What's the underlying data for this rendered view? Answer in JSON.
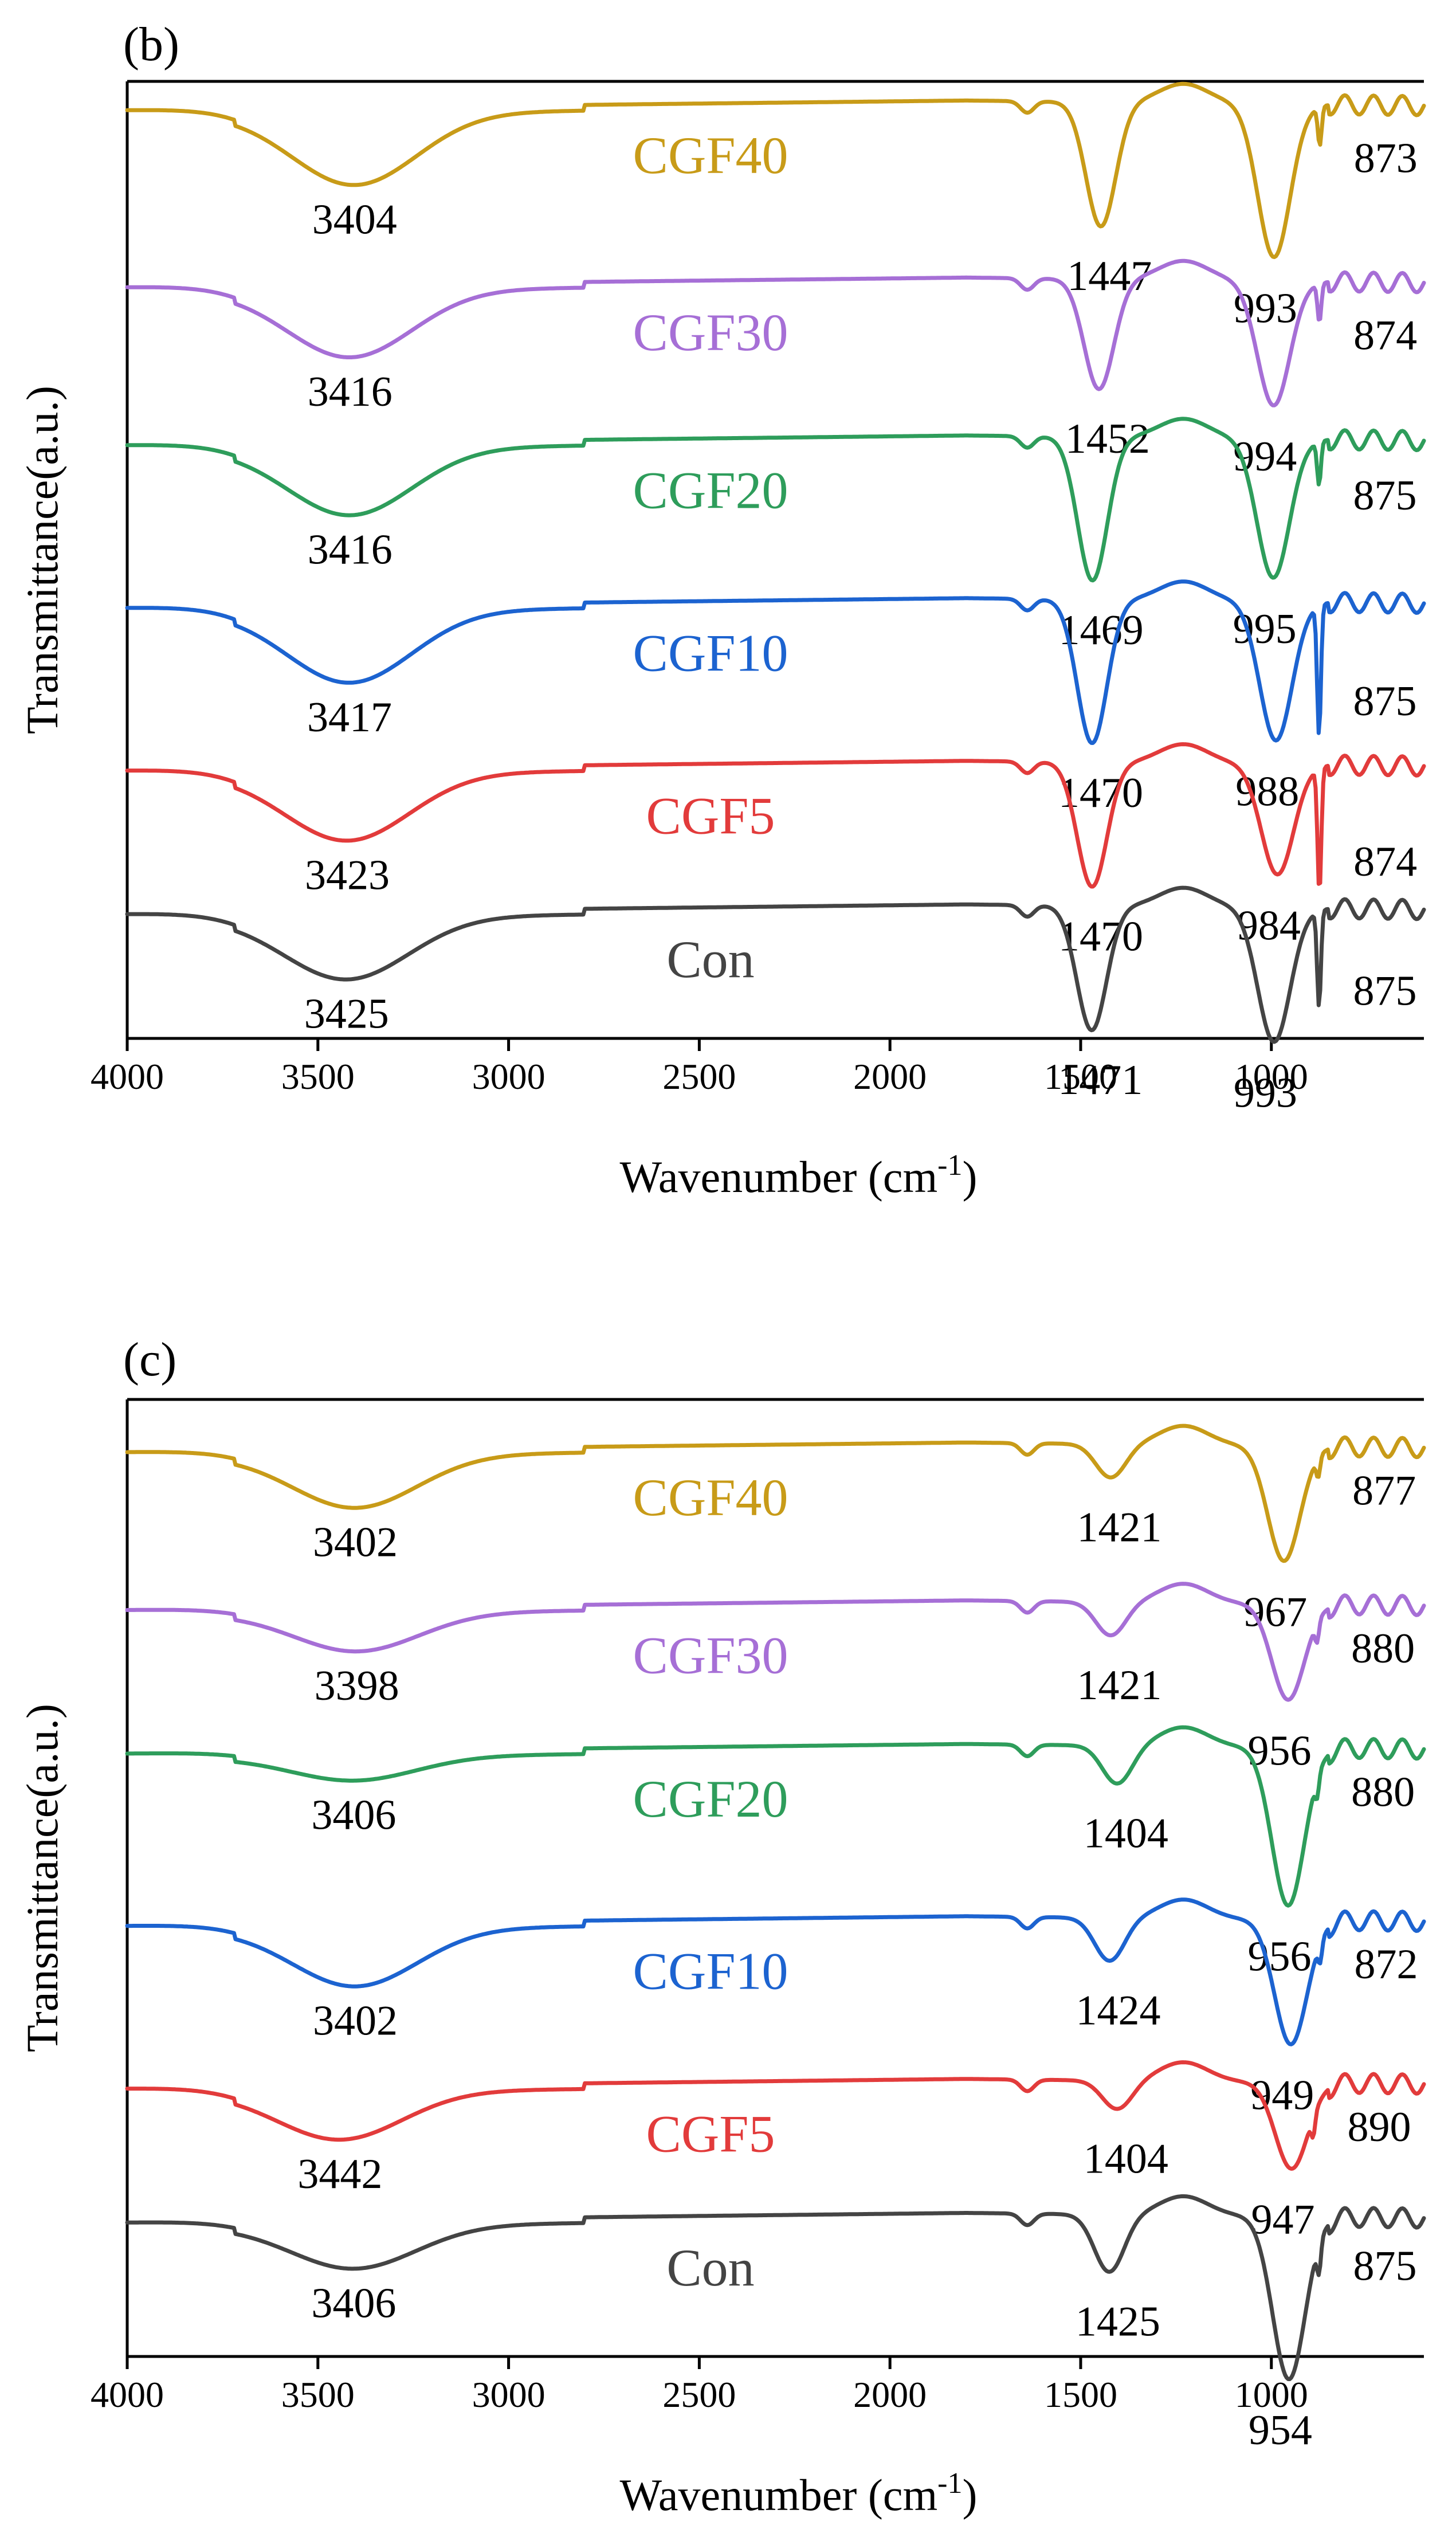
{
  "chart_data": [
    {
      "type": "line",
      "panel_label": "(b)",
      "xlabel": "Wavenumber (cm",
      "xlabel_sup": "-1",
      "xlabel_end": ")",
      "ylabel": "Transmittance(a.u.)",
      "xlim": [
        4000,
        600
      ],
      "xlim_note": "axis reversed: 4000 at left, about 600 at right",
      "xticks": [
        "4000",
        "3500",
        "3000",
        "2500",
        "2000",
        "1500",
        "1000"
      ],
      "xtick_values": [
        4000,
        3500,
        3000,
        2500,
        2000,
        1500,
        1000
      ],
      "y_units": "relative transmittance, each spectrum offset vertically (arbitrary units)",
      "ylim": [
        0,
        1
      ],
      "series": [
        {
          "name": "CGF40",
          "color": "#C89B18",
          "baseline": 0.97,
          "bands": [
            {
              "wn": 3404,
              "label": "3404",
              "depth": 0.075
            },
            {
              "wn": 1447,
              "label": "1447",
              "depth": 0.13
            },
            {
              "wn": 993,
              "label": "993",
              "depth": 0.16
            },
            {
              "wn": 873,
              "label": "873",
              "depth": 0.04
            }
          ]
        },
        {
          "name": "CGF30",
          "color": "#A66FD6",
          "baseline": 0.785,
          "bands": [
            {
              "wn": 3416,
              "label": "3416",
              "depth": 0.07
            },
            {
              "wn": 1452,
              "label": "1452",
              "depth": 0.115
            },
            {
              "wn": 994,
              "label": "994",
              "depth": 0.13
            },
            {
              "wn": 874,
              "label": "874",
              "depth": 0.04
            }
          ]
        },
        {
          "name": "CGF20",
          "color": "#2E9D5B",
          "baseline": 0.62,
          "bands": [
            {
              "wn": 3416,
              "label": "3416",
              "depth": 0.07
            },
            {
              "wn": 1469,
              "label": "1469",
              "depth": 0.15
            },
            {
              "wn": 995,
              "label": "995",
              "depth": 0.145
            },
            {
              "wn": 875,
              "label": "875",
              "depth": 0.045
            }
          ]
        },
        {
          "name": "CGF10",
          "color": "#1C63D0",
          "baseline": 0.45,
          "bands": [
            {
              "wn": 3417,
              "label": "3417",
              "depth": 0.075
            },
            {
              "wn": 1470,
              "label": "1470",
              "depth": 0.15
            },
            {
              "wn": 988,
              "label": "988",
              "depth": 0.145
            },
            {
              "wn": 875,
              "label": "875",
              "depth": 0.135
            }
          ]
        },
        {
          "name": "CGF5",
          "color": "#E23B3B",
          "baseline": 0.28,
          "bands": [
            {
              "wn": 3423,
              "label": "3423",
              "depth": 0.07
            },
            {
              "wn": 1470,
              "label": "1470",
              "depth": 0.13
            },
            {
              "wn": 984,
              "label": "984",
              "depth": 0.115
            },
            {
              "wn": 874,
              "label": "874",
              "depth": 0.13
            }
          ]
        },
        {
          "name": "Con",
          "color": "#444444",
          "baseline": 0.13,
          "bands": [
            {
              "wn": 3425,
              "label": "3425",
              "depth": 0.065
            },
            {
              "wn": 1471,
              "label": "1471",
              "depth": 0.13
            },
            {
              "wn": 993,
              "label": "993",
              "depth": 0.14
            },
            {
              "wn": 875,
              "label": "875",
              "depth": 0.1
            }
          ]
        }
      ]
    },
    {
      "type": "line",
      "panel_label": "(c)",
      "xlabel": "Wavenumber (cm",
      "xlabel_sup": "-1",
      "xlabel_end": ")",
      "ylabel": "Transmittance(a.u.)",
      "xlim": [
        4000,
        600
      ],
      "xlim_note": "axis reversed: 4000 at left, about 600 at right",
      "xticks": [
        "4000",
        "3500",
        "3000",
        "2500",
        "2000",
        "1500",
        "1000"
      ],
      "xtick_values": [
        4000,
        3500,
        3000,
        2500,
        2000,
        1500,
        1000
      ],
      "y_units": "relative transmittance, each spectrum offset vertically (arbitrary units)",
      "ylim": [
        0,
        1
      ],
      "series": [
        {
          "name": "CGF40",
          "color": "#C89B18",
          "baseline": 0.945,
          "bands": [
            {
              "wn": 3402,
              "label": "3402",
              "depth": 0.055
            },
            {
              "wn": 1421,
              "label": "1421",
              "depth": 0.035
            },
            {
              "wn": 967,
              "label": "967",
              "depth": 0.12
            },
            {
              "wn": 877,
              "label": "877",
              "depth": 0.02
            }
          ]
        },
        {
          "name": "CGF30",
          "color": "#A66FD6",
          "baseline": 0.78,
          "bands": [
            {
              "wn": 3398,
              "label": "3398",
              "depth": 0.04
            },
            {
              "wn": 1421,
              "label": "1421",
              "depth": 0.035
            },
            {
              "wn": 956,
              "label": "956",
              "depth": 0.1
            },
            {
              "wn": 880,
              "label": "880",
              "depth": 0.02
            }
          ]
        },
        {
          "name": "CGF20",
          "color": "#2E9D5B",
          "baseline": 0.63,
          "bands": [
            {
              "wn": 3406,
              "label": "3406",
              "depth": 0.025
            },
            {
              "wn": 1404,
              "label": "1404",
              "depth": 0.04
            },
            {
              "wn": 956,
              "label": "956",
              "depth": 0.165
            },
            {
              "wn": 880,
              "label": "880",
              "depth": 0.02
            }
          ]
        },
        {
          "name": "CGF10",
          "color": "#1C63D0",
          "baseline": 0.45,
          "bands": [
            {
              "wn": 3402,
              "label": "3402",
              "depth": 0.06
            },
            {
              "wn": 1424,
              "label": "1424",
              "depth": 0.045
            },
            {
              "wn": 949,
              "label": "949",
              "depth": 0.13
            },
            {
              "wn": 872,
              "label": "872",
              "depth": 0.02
            }
          ]
        },
        {
          "name": "CGF5",
          "color": "#E23B3B",
          "baseline": 0.28,
          "bands": [
            {
              "wn": 3442,
              "label": "3442",
              "depth": 0.05
            },
            {
              "wn": 1404,
              "label": "1404",
              "depth": 0.03
            },
            {
              "wn": 947,
              "label": "947",
              "depth": 0.09
            },
            {
              "wn": 890,
              "label": "890",
              "depth": 0.02
            }
          ]
        },
        {
          "name": "Con",
          "color": "#444444",
          "baseline": 0.14,
          "bands": [
            {
              "wn": 3406,
              "label": "3406",
              "depth": 0.045
            },
            {
              "wn": 1425,
              "label": "1425",
              "depth": 0.06
            },
            {
              "wn": 954,
              "label": "954",
              "depth": 0.17
            },
            {
              "wn": 875,
              "label": "875",
              "depth": 0.03
            }
          ]
        }
      ]
    }
  ]
}
